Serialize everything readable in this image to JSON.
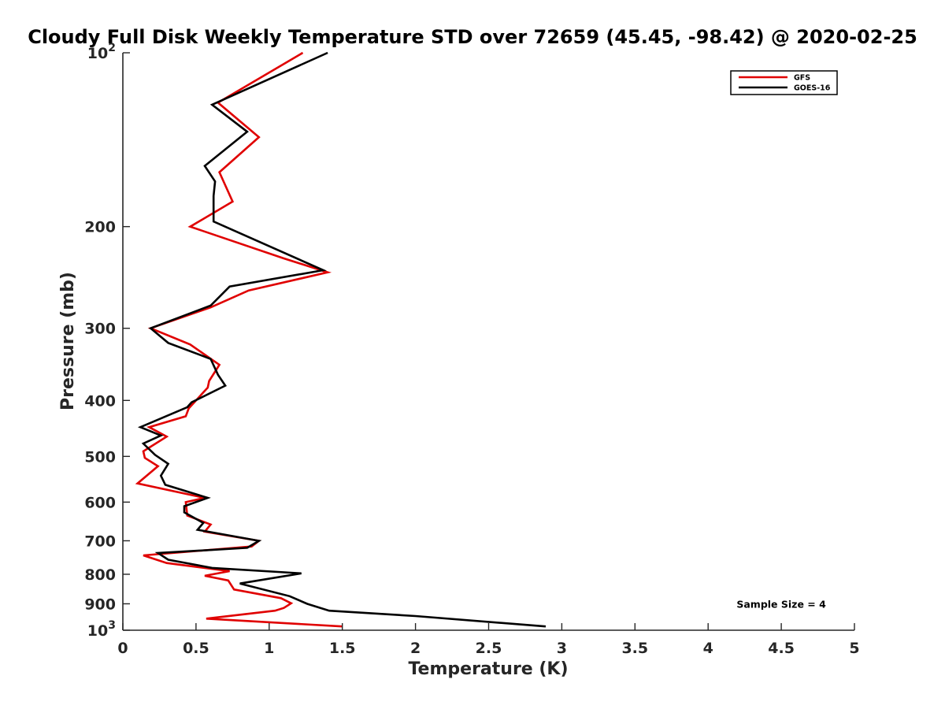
{
  "chart_data": {
    "type": "line",
    "title": "Cloudy Full Disk Weekly Temperature STD over 72659 (45.45, -98.42) @ 2020-02-25",
    "xlabel": "Temperature (K)",
    "ylabel": "Pressure (mb)",
    "xlim": [
      0,
      5
    ],
    "ylim": [
      100,
      1000
    ],
    "y_scale": "log",
    "y_reversed": true,
    "grid": false,
    "legend_position": "top-right",
    "xticks": [
      {
        "value": 0,
        "label": "0"
      },
      {
        "value": 0.5,
        "label": "0.5"
      },
      {
        "value": 1,
        "label": "1"
      },
      {
        "value": 1.5,
        "label": "1.5"
      },
      {
        "value": 2,
        "label": "2"
      },
      {
        "value": 2.5,
        "label": "2.5"
      },
      {
        "value": 3,
        "label": "3"
      },
      {
        "value": 3.5,
        "label": "3.5"
      },
      {
        "value": 4,
        "label": "4"
      },
      {
        "value": 4.5,
        "label": "4.5"
      },
      {
        "value": 5,
        "label": "5"
      }
    ],
    "yticks": [
      {
        "value": 100,
        "label": "10",
        "sup": "2"
      },
      {
        "value": 200,
        "label": "200"
      },
      {
        "value": 300,
        "label": "300"
      },
      {
        "value": 400,
        "label": "400"
      },
      {
        "value": 500,
        "label": "500"
      },
      {
        "value": 600,
        "label": "600"
      },
      {
        "value": 700,
        "label": "700"
      },
      {
        "value": 800,
        "label": "800"
      },
      {
        "value": 900,
        "label": "900"
      },
      {
        "value": 1000,
        "label": "10",
        "sup": "3"
      }
    ],
    "series": [
      {
        "name": "GFS",
        "color": "#e00000",
        "points": [
          [
            1.23,
            100
          ],
          [
            0.65,
            122
          ],
          [
            0.93,
            140
          ],
          [
            0.66,
            161
          ],
          [
            0.75,
            181
          ],
          [
            0.46,
            200
          ],
          [
            1.1,
            227
          ],
          [
            1.4,
            240
          ],
          [
            0.86,
            258
          ],
          [
            0.6,
            276
          ],
          [
            0.19,
            300
          ],
          [
            0.46,
            320
          ],
          [
            0.66,
            347
          ],
          [
            0.59,
            370
          ],
          [
            0.58,
            380
          ],
          [
            0.45,
            413
          ],
          [
            0.43,
            426
          ],
          [
            0.18,
            445
          ],
          [
            0.3,
            462
          ],
          [
            0.14,
            490
          ],
          [
            0.15,
            503
          ],
          [
            0.24,
            520
          ],
          [
            0.1,
            557
          ],
          [
            0.56,
            590
          ],
          [
            0.43,
            600
          ],
          [
            0.44,
            633
          ],
          [
            0.6,
            656
          ],
          [
            0.56,
            675
          ],
          [
            0.93,
            700
          ],
          [
            0.88,
            716
          ],
          [
            0.14,
            742
          ],
          [
            0.3,
            765
          ],
          [
            0.73,
            790
          ],
          [
            0.56,
            805
          ],
          [
            0.72,
            820
          ],
          [
            0.76,
            850
          ],
          [
            1.08,
            880
          ],
          [
            1.15,
            898
          ],
          [
            1.13,
            905
          ],
          [
            1.1,
            915
          ],
          [
            1.04,
            925
          ],
          [
            0.57,
            955
          ],
          [
            1.5,
            985
          ]
        ]
      },
      {
        "name": "GOES-16",
        "color": "#000000",
        "points": [
          [
            1.4,
            100
          ],
          [
            0.61,
            123
          ],
          [
            0.85,
            137
          ],
          [
            0.56,
            157
          ],
          [
            0.63,
            167
          ],
          [
            0.62,
            177
          ],
          [
            0.62,
            196
          ],
          [
            1.37,
            238
          ],
          [
            0.73,
            254
          ],
          [
            0.6,
            274
          ],
          [
            0.19,
            300
          ],
          [
            0.31,
            318
          ],
          [
            0.6,
            339
          ],
          [
            0.65,
            361
          ],
          [
            0.7,
            377
          ],
          [
            0.47,
            403
          ],
          [
            0.44,
            411
          ],
          [
            0.12,
            445
          ],
          [
            0.26,
            460
          ],
          [
            0.14,
            475
          ],
          [
            0.22,
            497
          ],
          [
            0.31,
            515
          ],
          [
            0.26,
            540
          ],
          [
            0.29,
            560
          ],
          [
            0.58,
            590
          ],
          [
            0.42,
            610
          ],
          [
            0.42,
            625
          ],
          [
            0.55,
            652
          ],
          [
            0.51,
            670
          ],
          [
            0.93,
            700
          ],
          [
            0.85,
            720
          ],
          [
            0.24,
            735
          ],
          [
            0.31,
            755
          ],
          [
            0.61,
            780
          ],
          [
            1.22,
            797
          ],
          [
            0.8,
            830
          ],
          [
            1.14,
            873
          ],
          [
            1.26,
            900
          ],
          [
            1.41,
            925
          ],
          [
            2.0,
            945
          ],
          [
            2.89,
            985
          ]
        ]
      }
    ],
    "annotations": [
      {
        "text": "Sample Size = 4",
        "x": 4.5,
        "y": 900
      }
    ]
  }
}
